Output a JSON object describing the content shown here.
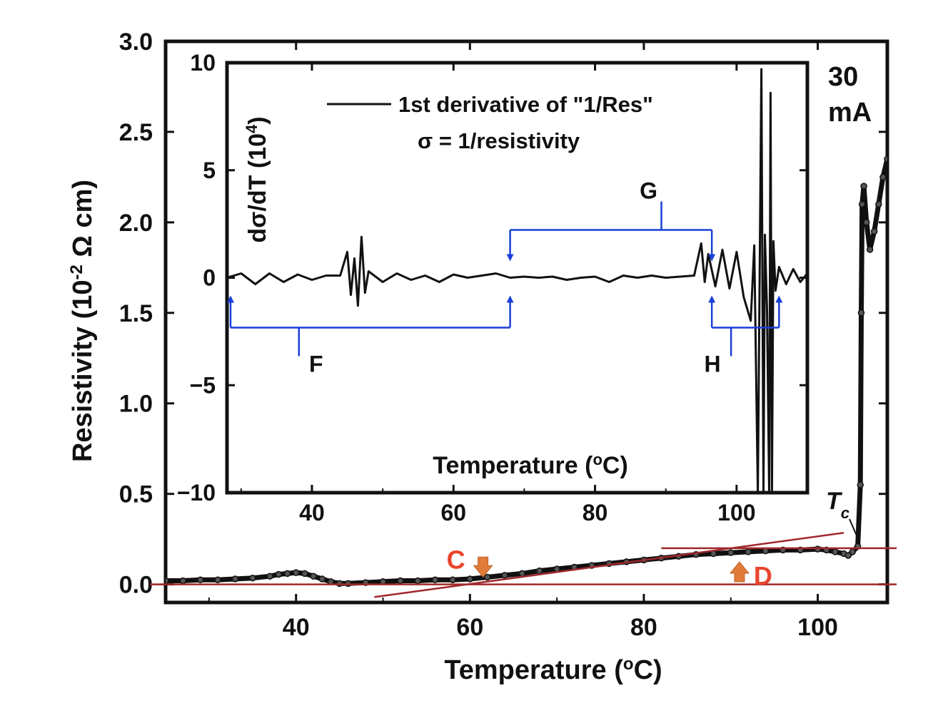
{
  "colors": {
    "data": "#111111",
    "fit_lines": "#a0282a",
    "inset_brackets": "#1a3fd8",
    "arrows": "#e07b3a",
    "annotation_red": "#e8452c"
  },
  "chart_data": [
    {
      "type": "scatter",
      "role": "main",
      "xlabel_main": "Temperature (",
      "xlabel_sup": "o",
      "xlabel_tail": "C)",
      "ylabel_main": "Resistivity (10",
      "ylabel_sup": "-2",
      "ylabel_tail": " Ω cm)",
      "xlim": [
        25,
        108
      ],
      "ylim": [
        -0.1,
        3.0
      ],
      "xticks": [
        40,
        60,
        80,
        100
      ],
      "yticks": [
        "0.0",
        "0.5",
        "1.0",
        "1.5",
        "2.0",
        "2.5",
        "3.0"
      ],
      "current_label_value": "30",
      "current_label_unit": "mA",
      "tc_label": "T",
      "tc_sub": "c",
      "series": [
        {
          "x": [
            25,
            27,
            29,
            31,
            33,
            35,
            37,
            38,
            39,
            40,
            41,
            42,
            43,
            44,
            45,
            46,
            48,
            50,
            52,
            54,
            56,
            58,
            60,
            62,
            64,
            66,
            68,
            70,
            72,
            74,
            76,
            78,
            80,
            82,
            84,
            86,
            88,
            90,
            92,
            94,
            96,
            98,
            100,
            101,
            102,
            103,
            103.5,
            104,
            104.6,
            104.9,
            105.0,
            105.1,
            105.3,
            105.6,
            106,
            106.5,
            107,
            107.5,
            108
          ],
          "y": [
            0.02,
            0.02,
            0.025,
            0.025,
            0.03,
            0.035,
            0.045,
            0.055,
            0.06,
            0.065,
            0.06,
            0.045,
            0.03,
            0.015,
            0.005,
            0.005,
            0.01,
            0.015,
            0.02,
            0.02,
            0.025,
            0.025,
            0.03,
            0.04,
            0.05,
            0.06,
            0.075,
            0.085,
            0.095,
            0.105,
            0.115,
            0.125,
            0.135,
            0.145,
            0.155,
            0.165,
            0.17,
            0.175,
            0.18,
            0.185,
            0.19,
            0.19,
            0.195,
            0.19,
            0.18,
            0.17,
            0.16,
            0.18,
            0.21,
            0.55,
            1.5,
            2.1,
            2.2,
            2.0,
            1.85,
            1.95,
            2.1,
            2.25,
            2.35
          ]
        }
      ],
      "fit_lines": [
        {
          "x": [
            24,
            108
          ],
          "y": [
            0.0,
            0.0
          ]
        },
        {
          "x": [
            82,
            108
          ],
          "y": [
            0.2,
            0.2
          ]
        },
        {
          "x": [
            49,
            103
          ],
          "y": [
            -0.07,
            0.285
          ]
        }
      ],
      "markers": [
        {
          "label": "C",
          "x": 61.5,
          "y": 0.08,
          "direction": "down"
        },
        {
          "label": "D",
          "x": 91,
          "y": 0.085,
          "direction": "up"
        }
      ]
    },
    {
      "type": "line",
      "role": "inset",
      "xlabel_main": "Temperature (",
      "xlabel_sup": "o",
      "xlabel_tail": "C)",
      "ylabel_main": "dσ/dT (10",
      "ylabel_sup": "4",
      "ylabel_tail": ")",
      "xlim": [
        28,
        110
      ],
      "ylim": [
        -10,
        10
      ],
      "xticks": [
        40,
        60,
        80,
        100
      ],
      "yticks": [
        {
          "v": -10,
          "t": "−10"
        },
        {
          "v": -5,
          "t": "−5"
        },
        {
          "v": 0,
          "t": "0"
        },
        {
          "v": 5,
          "t": "5"
        },
        {
          "v": 10,
          "t": "10"
        }
      ],
      "legend_line1": "1st derivative of \"1/Res\"",
      "legend_line2": "σ = 1/resistivity",
      "series": [
        {
          "x": [
            28,
            30,
            32,
            34,
            36,
            38,
            40,
            42,
            44,
            45,
            45.5,
            46,
            46.5,
            47,
            47.5,
            48,
            50,
            52,
            54,
            56,
            58,
            60,
            62,
            64,
            66,
            68,
            70,
            72,
            74,
            76,
            78,
            80,
            82,
            84,
            86,
            88,
            90,
            92,
            94,
            95,
            95.5,
            96,
            97,
            98,
            99,
            100,
            101,
            102,
            102.5,
            103,
            103.5,
            103.8,
            104,
            104.3,
            104.6,
            104.8,
            105,
            105.2,
            105.5,
            106,
            107,
            108,
            109,
            110
          ],
          "y": [
            0.0,
            0.2,
            -0.3,
            0.2,
            -0.2,
            0.15,
            -0.1,
            0.1,
            0.1,
            1.2,
            -0.8,
            0.9,
            -1.3,
            1.9,
            -0.7,
            0.3,
            -0.2,
            0.2,
            -0.1,
            0.1,
            -0.2,
            0.15,
            0.0,
            0.1,
            0.2,
            0.0,
            0.05,
            0.0,
            0.05,
            -0.1,
            0.0,
            0.05,
            -0.2,
            0.1,
            0.0,
            0.1,
            0.0,
            0.05,
            0.1,
            1.6,
            -0.2,
            1.1,
            -0.4,
            1.3,
            -0.5,
            1.2,
            -0.9,
            -2.0,
            1.5,
            -10,
            9.7,
            -10,
            2.0,
            -1.5,
            -10,
            8.6,
            -10,
            1.7,
            -0.6,
            0.5,
            -0.3,
            0.4,
            -0.2,
            0.2
          ]
        }
      ],
      "brackets": [
        {
          "label": "F",
          "x_start": 28.5,
          "x_end": 68,
          "side": "below"
        },
        {
          "label": "G",
          "x_start": 68,
          "x_end": 96.5,
          "side": "above"
        },
        {
          "label": "H",
          "x_start": 96.5,
          "x_end": 106,
          "side": "below"
        }
      ]
    }
  ]
}
